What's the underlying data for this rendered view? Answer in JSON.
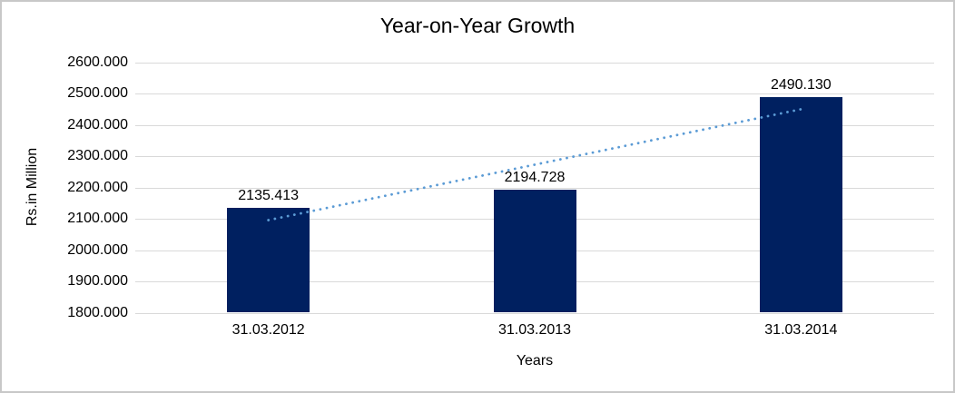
{
  "chart_data": {
    "type": "bar",
    "title": "Year-on-Year Growth",
    "xlabel": "Years",
    "ylabel": "Rs.in Million",
    "categories": [
      "31.03.2012",
      "31.03.2013",
      "31.03.2014"
    ],
    "values": [
      2135.413,
      2194.728,
      2490.13
    ],
    "data_labels": [
      "2135.413",
      "2194.728",
      "2490.130"
    ],
    "ylim": [
      1800,
      2600
    ],
    "ytick_step": 100,
    "ytick_labels": [
      "2600.000",
      "2500.000",
      "2400.000",
      "2300.000",
      "2200.000",
      "2100.000",
      "2000.000",
      "1900.000",
      "1800.000"
    ],
    "grid": "horizontal",
    "legend": "none",
    "trendline": {
      "type": "linear",
      "style": "dotted"
    },
    "colors": {
      "bar": "#002060",
      "trendline": "#5b9bd5",
      "gridline": "#d9d9d9",
      "text": "#000000",
      "border": "#c8c8c8",
      "background": "#ffffff"
    }
  }
}
